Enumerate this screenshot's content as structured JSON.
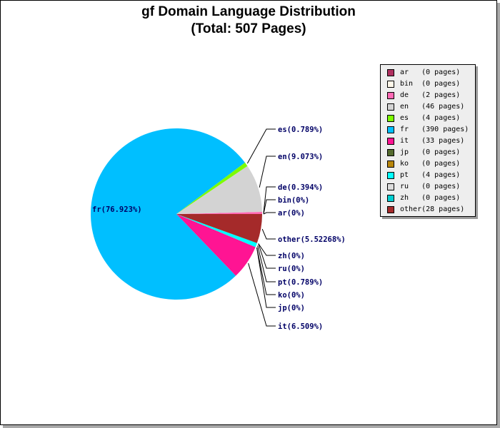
{
  "chart_data": {
    "type": "pie",
    "title": "gf Domain Language Distribution",
    "subtitle": "(Total: 507 Pages)",
    "slices": [
      {
        "label": "ar",
        "pages": 0,
        "percent_label": "ar(0%)",
        "legend_text": "ar   (0 pages)",
        "color": "#b03060"
      },
      {
        "label": "bin",
        "pages": 0,
        "percent_label": "bin(0%)",
        "legend_text": "bin  (0 pages)",
        "color": "#fff8ea"
      },
      {
        "label": "de",
        "pages": 2,
        "percent_label": "de(0.394%)",
        "legend_text": "de   (2 pages)",
        "color": "#ff69b4"
      },
      {
        "label": "en",
        "pages": 46,
        "percent_label": "en(9.073%)",
        "legend_text": "en   (46 pages)",
        "color": "#d3d3d3"
      },
      {
        "label": "es",
        "pages": 4,
        "percent_label": "es(0.789%)",
        "legend_text": "es   (4 pages)",
        "color": "#7cfc00"
      },
      {
        "label": "fr",
        "pages": 390,
        "percent_label": "fr(76.923%)",
        "legend_text": "fr   (390 pages)",
        "color": "#00bfff"
      },
      {
        "label": "it",
        "pages": 33,
        "percent_label": "it(6.509%)",
        "legend_text": "it   (33 pages)",
        "color": "#ff1493"
      },
      {
        "label": "jp",
        "pages": 0,
        "percent_label": "jp(0%)",
        "legend_text": "jp   (0 pages)",
        "color": "#556b2f"
      },
      {
        "label": "ko",
        "pages": 0,
        "percent_label": "ko(0%)",
        "legend_text": "ko   (0 pages)",
        "color": "#b8860b"
      },
      {
        "label": "pt",
        "pages": 4,
        "percent_label": "pt(0.789%)",
        "legend_text": "pt   (4 pages)",
        "color": "#00ffff"
      },
      {
        "label": "ru",
        "pages": 0,
        "percent_label": "ru(0%)",
        "legend_text": "ru   (0 pages)",
        "color": "#dcdcdc"
      },
      {
        "label": "zh",
        "pages": 0,
        "percent_label": "zh(0%)",
        "legend_text": "zh   (0 pages)",
        "color": "#00ced1"
      },
      {
        "label": "other",
        "pages": 28,
        "percent_label": "other(5.52268%)",
        "legend_text": "other(28 pages)",
        "color": "#a52a2a"
      }
    ],
    "legend_position": "top-right"
  }
}
